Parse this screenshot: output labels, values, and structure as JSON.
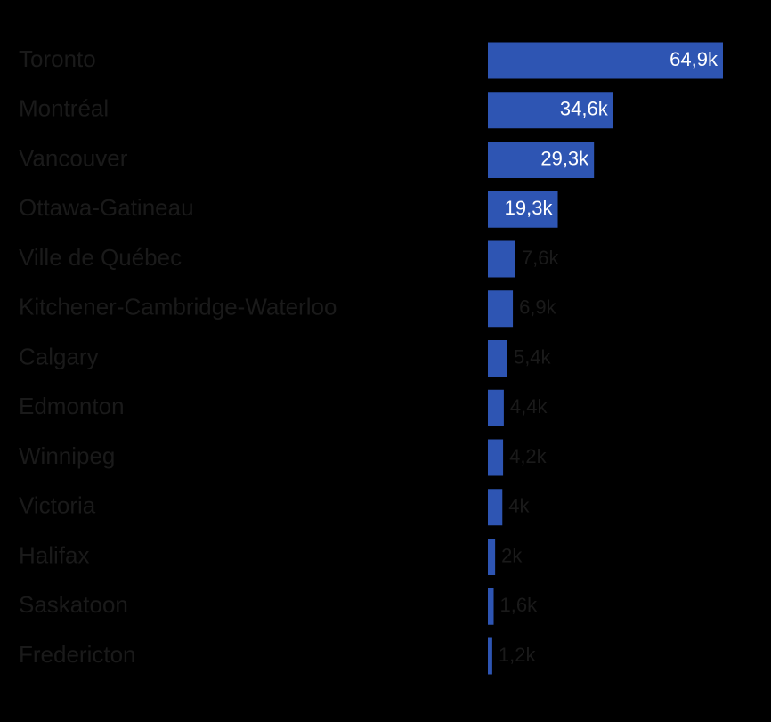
{
  "chart_data": {
    "type": "bar",
    "orientation": "horizontal",
    "title": "",
    "xlabel": "",
    "ylabel": "",
    "xlim": [
      0,
      64.9
    ],
    "grid": false,
    "legend": "none",
    "categories": [
      "Toronto",
      "Montréal",
      "Vancouver",
      "Ottawa-Gatineau",
      "Ville de Québec",
      "Kitchener-Cambridge-Waterloo",
      "Calgary",
      "Edmonton",
      "Winnipeg",
      "Victoria",
      "Halifax",
      "Saskatoon",
      "Fredericton"
    ],
    "values": [
      64.9,
      34.6,
      29.3,
      19.3,
      7.6,
      6.9,
      5.4,
      4.4,
      4.2,
      4.0,
      2.0,
      1.6,
      1.2
    ],
    "value_labels": [
      "64,9k",
      "34,6k",
      "29,3k",
      "19,3k",
      "7,6k",
      "6,9k",
      "5,4k",
      "4,4k",
      "4,2k",
      "4k",
      "2k",
      "1,6k",
      "1,2k"
    ],
    "colors": {
      "background": "#000000",
      "bar": "#2e55b3",
      "category_text": "#1a1a1a",
      "value_text_inside": "#ffffff",
      "value_text_outside": "#1a1a1a"
    }
  }
}
